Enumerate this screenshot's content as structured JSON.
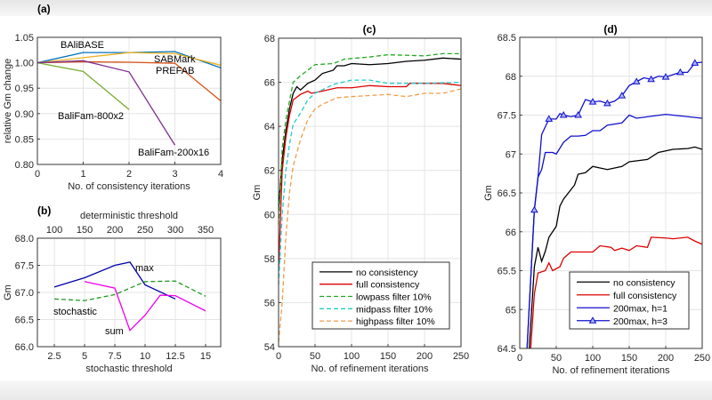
{
  "chart_data": [
    {
      "type": "line",
      "panel": "(a)",
      "xlabel": "No. of consistency iterations",
      "ylabel": "relative Gm change",
      "xlim": [
        0,
        4
      ],
      "ylim": [
        0.8,
        1.05
      ],
      "xticks": [
        "0",
        "1",
        "2",
        "3",
        "4"
      ],
      "yticks": [
        "0.80",
        "0.85",
        "0.90",
        "0.95",
        "1.00",
        "1.05"
      ],
      "grid": true,
      "series": [
        {
          "name": "BAliBASE",
          "color": "#0072bd",
          "x": [
            0,
            1,
            2,
            3,
            4
          ],
          "y": [
            1.0,
            1.02,
            1.02,
            1.022,
            0.99
          ]
        },
        {
          "name": "SABMark",
          "color": "#edb120",
          "x": [
            0,
            1,
            2,
            3,
            4
          ],
          "y": [
            1.0,
            1.01,
            1.02,
            1.018,
            0.995
          ]
        },
        {
          "name": "PREFAB",
          "color": "#d95319",
          "x": [
            0,
            1,
            2,
            3,
            4
          ],
          "y": [
            1.0,
            1.002,
            1.001,
            0.999,
            0.925
          ]
        },
        {
          "name": "BaliFam-800x2",
          "color": "#77ac30",
          "x": [
            0,
            1,
            2
          ],
          "y": [
            1.0,
            0.983,
            0.908
          ]
        },
        {
          "name": "BaliFam-200x16",
          "color": "#7e2f8e",
          "x": [
            0,
            1,
            2,
            3
          ],
          "y": [
            1.0,
            1.004,
            0.982,
            0.838
          ]
        }
      ]
    },
    {
      "type": "line",
      "panel": "(b)",
      "xlabel": "stochastic threshold",
      "x2label": "deterministic threshold",
      "ylabel": "Gm",
      "xlim": [
        1.1,
        16.25
      ],
      "ylim": [
        66.0,
        68.0
      ],
      "xticks": [
        "2.5",
        "5",
        "7.5",
        "10",
        "12.5",
        "15"
      ],
      "x2ticks": [
        "100",
        "150",
        "200",
        "250",
        "300",
        "350"
      ],
      "yticks": [
        "66.0",
        "66.5",
        "67.0",
        "67.5",
        "68.0"
      ],
      "grid": true,
      "series": [
        {
          "name": "max",
          "color": "#0000aa",
          "dash": false,
          "x": [
            2.5,
            5,
            7.5,
            8.75,
            10,
            12.5
          ],
          "y": [
            67.1,
            67.27,
            67.5,
            67.56,
            67.14,
            66.88
          ]
        },
        {
          "name": "sum",
          "color": "#ee00ee",
          "dash": false,
          "x": [
            5,
            7.5,
            8.75,
            10,
            11.25,
            12.5,
            15
          ],
          "y": [
            67.2,
            67.08,
            66.3,
            66.58,
            66.95,
            66.94,
            66.66
          ]
        },
        {
          "name": "stochastic",
          "color": "#229922",
          "dash": true,
          "x": [
            2.5,
            5,
            7.5,
            10,
            12.5,
            15
          ],
          "y": [
            66.88,
            66.85,
            66.96,
            67.2,
            67.21,
            66.93
          ]
        }
      ]
    },
    {
      "type": "line",
      "panel": "(c)",
      "xlabel": "No. of refinement iterations",
      "ylabel": "Gm",
      "xlim": [
        0,
        250
      ],
      "ylim": [
        54,
        68
      ],
      "xticks": [
        "0",
        "50",
        "100",
        "150",
        "200",
        "250"
      ],
      "yticks": [
        "54",
        "56",
        "58",
        "60",
        "62",
        "64",
        "66",
        "68"
      ],
      "grid": true,
      "legend": "bottom-right",
      "series": [
        {
          "name": "no consistency",
          "color": "#000000",
          "dash": false,
          "x": [
            0,
            5,
            10,
            15,
            20,
            25,
            30,
            40,
            50,
            60,
            75,
            80,
            90,
            100,
            125,
            150,
            175,
            200,
            225,
            250
          ],
          "y": [
            60.2,
            62.5,
            63.8,
            64.8,
            65.5,
            65.8,
            65.65,
            65.95,
            66.1,
            66.4,
            66.55,
            66.75,
            66.75,
            66.85,
            66.8,
            66.85,
            66.95,
            67.0,
            67.1,
            67.05
          ]
        },
        {
          "name": "full consistency",
          "color": "#dd0000",
          "dash": false,
          "x": [
            0,
            5,
            10,
            15,
            20,
            30,
            40,
            45,
            60,
            80,
            100,
            125,
            150,
            175,
            180,
            225,
            250
          ],
          "y": [
            57.5,
            62,
            63.5,
            64.5,
            65.2,
            65.45,
            65.6,
            65.5,
            65.6,
            65.75,
            65.75,
            65.85,
            65.8,
            65.8,
            65.95,
            65.95,
            65.85
          ]
        },
        {
          "name": "lowpass filter 10%",
          "color": "#22aa22",
          "dash": true,
          "x": [
            0,
            5,
            10,
            20,
            30,
            50,
            75,
            90,
            125,
            150,
            200,
            225,
            250
          ],
          "y": [
            59.5,
            63,
            64.3,
            66.0,
            66.3,
            66.8,
            66.85,
            67.05,
            67.15,
            67.25,
            67.2,
            67.3,
            67.3
          ]
        },
        {
          "name": "midpass filter 10%",
          "color": "#22cccc",
          "dash": true,
          "x": [
            0,
            5,
            10,
            15,
            20,
            30,
            40,
            50,
            75,
            100,
            125,
            150,
            200,
            250
          ],
          "y": [
            56.8,
            60,
            62,
            63.2,
            64.1,
            64.6,
            65.2,
            65.5,
            65.9,
            66.1,
            66.1,
            65.95,
            65.95,
            66.0
          ]
        },
        {
          "name": "highpass filter 10%",
          "color": "#f39c4a",
          "dash": true,
          "x": [
            0,
            5,
            10,
            15,
            20,
            30,
            40,
            50,
            60,
            80,
            100,
            150,
            175,
            200,
            225,
            250
          ],
          "y": [
            54.2,
            56,
            59,
            61,
            62.2,
            63.4,
            64.3,
            64.8,
            65,
            65.3,
            65.35,
            65.45,
            65.35,
            65.5,
            65.5,
            65.7
          ]
        }
      ]
    },
    {
      "type": "line",
      "panel": "(d)",
      "xlabel": "No. of refinement iterations",
      "ylabel": "Gm",
      "xlim": [
        0,
        250
      ],
      "ylim": [
        64.5,
        68.5
      ],
      "xticks": [
        "0",
        "50",
        "100",
        "150",
        "200",
        "250"
      ],
      "yticks": [
        "64.5",
        "65",
        "65.5",
        "66",
        "66.5",
        "67",
        "67.5",
        "68",
        "68.5"
      ],
      "grid": true,
      "legend": "bottom-right",
      "series": [
        {
          "name": "no consistency",
          "color": "#000000",
          "x": [
            13,
            20,
            25,
            30,
            35,
            40,
            50,
            55,
            60,
            75,
            80,
            90,
            100,
            110,
            120,
            140,
            150,
            175,
            190,
            210,
            230,
            240,
            250
          ],
          "y": [
            64.5,
            65.55,
            65.8,
            65.62,
            65.75,
            65.93,
            66.07,
            66.33,
            66.42,
            66.6,
            66.74,
            66.76,
            66.84,
            66.82,
            66.8,
            66.84,
            66.9,
            66.93,
            67.02,
            67.06,
            67.07,
            67.09,
            67.06
          ]
        },
        {
          "name": "full consistency",
          "color": "#dd0000",
          "x": [
            15,
            20,
            25,
            35,
            40,
            45,
            55,
            60,
            70,
            100,
            110,
            125,
            130,
            140,
            150,
            160,
            175,
            180,
            200,
            210,
            230,
            240,
            250
          ],
          "y": [
            64.5,
            65.2,
            65.47,
            65.5,
            65.6,
            65.5,
            65.55,
            65.66,
            65.74,
            65.74,
            65.82,
            65.8,
            65.76,
            65.79,
            65.76,
            65.82,
            65.8,
            65.93,
            65.92,
            65.91,
            65.93,
            65.88,
            65.84
          ]
        },
        {
          "name": "200max, h=1",
          "color": "#1010cc",
          "x": [
            10,
            20,
            25,
            30,
            35,
            45,
            50,
            60,
            70,
            80,
            90,
            100,
            110,
            120,
            140,
            150,
            160,
            200,
            250
          ],
          "y": [
            64.5,
            66.28,
            66.7,
            66.8,
            67.02,
            67.02,
            67.0,
            67.15,
            67.23,
            67.23,
            67.24,
            67.3,
            67.3,
            67.37,
            67.4,
            67.5,
            67.46,
            67.51,
            67.46
          ]
        },
        {
          "name": "200max, h=3",
          "color": "#1010cc",
          "marker": "triangle",
          "marker_x": [
            20,
            40,
            60,
            80,
            100,
            120,
            140,
            160,
            180,
            200,
            220,
            240
          ],
          "x": [
            10,
            20,
            25,
            30,
            40,
            50,
            55,
            60,
            70,
            80,
            90,
            100,
            110,
            120,
            130,
            140,
            150,
            160,
            170,
            180,
            190,
            200,
            210,
            220,
            230,
            240,
            250
          ],
          "y": [
            64.5,
            66.28,
            66.7,
            67.25,
            67.45,
            67.45,
            67.52,
            67.5,
            67.48,
            67.5,
            67.7,
            67.67,
            67.68,
            67.65,
            67.68,
            67.75,
            67.88,
            67.93,
            67.98,
            67.96,
            68.0,
            67.99,
            68.02,
            68.05,
            68.05,
            68.17,
            68.18
          ]
        }
      ]
    }
  ],
  "annotations": {
    "a": [
      "BAliBASE",
      "SABMark",
      "PREFAB",
      "BaliFam-800x2",
      "BaliFam-200x16"
    ],
    "b": [
      "max",
      "stochastic",
      "sum"
    ]
  }
}
